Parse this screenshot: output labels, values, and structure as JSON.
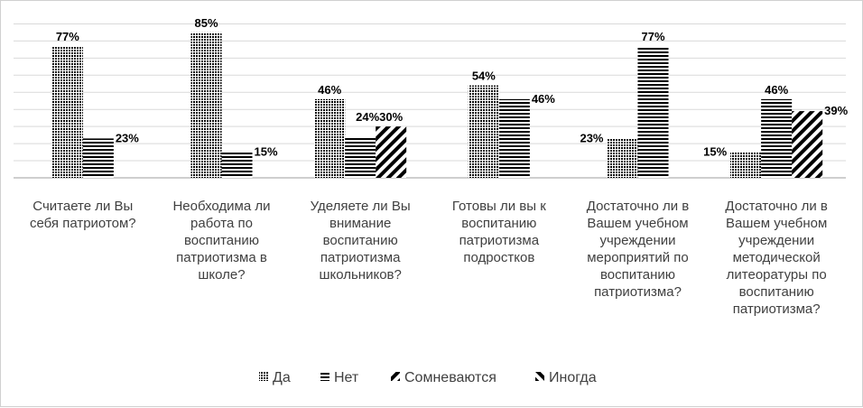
{
  "chart_data": {
    "type": "bar",
    "categories": [
      [
        "Считаете ли Вы",
        "себя патриотом?"
      ],
      [
        "Необходима ли",
        "работа по",
        "воспитанию",
        "патриотизма в",
        "школе?"
      ],
      [
        "Уделяете ли Вы",
        "внимание",
        "воспитанию",
        "патриотизма",
        "школьников?"
      ],
      [
        "Готовы ли вы к",
        "воспитанию",
        "патриотизма",
        "подростков"
      ],
      [
        "Достаточно ли в",
        "Вашем учебном",
        "учреждении",
        "мероприятий по",
        "воспитанию",
        "патриотизма?"
      ],
      [
        "Достаточно ли в",
        "Вашем учебном",
        "учреждении",
        "методической",
        "литеоратуры по",
        "воспитанию",
        "патриотизма?"
      ]
    ],
    "series": [
      {
        "name": "Да",
        "pattern": "dots",
        "values": [
          77,
          85,
          46,
          54,
          23,
          15
        ],
        "labels": [
          "77%",
          "85%",
          "46%",
          "54%",
          "23%",
          "15%"
        ]
      },
      {
        "name": "Нет",
        "pattern": "hlines",
        "values": [
          23,
          15,
          24,
          46,
          77,
          46
        ],
        "labels": [
          "23%",
          "15%",
          "24%",
          "46%",
          "77%",
          "46%"
        ]
      },
      {
        "name": "Сомневаются",
        "pattern": "diag-fwd",
        "values": [
          null,
          null,
          30,
          null,
          null,
          39
        ],
        "labels": [
          null,
          null,
          "30%",
          null,
          null,
          "39%"
        ]
      },
      {
        "name": "Иногда",
        "pattern": "diag-back",
        "values": [
          null,
          null,
          null,
          null,
          null,
          null
        ],
        "labels": [
          null,
          null,
          null,
          null,
          null,
          null
        ]
      }
    ],
    "ylim": [
      0,
      90
    ],
    "grid": true,
    "legend_position": "bottom",
    "colors": {
      "bar": "#000000",
      "grid": "#d9d9d9",
      "axis": "#bfbfbf",
      "text": "#404040"
    }
  }
}
